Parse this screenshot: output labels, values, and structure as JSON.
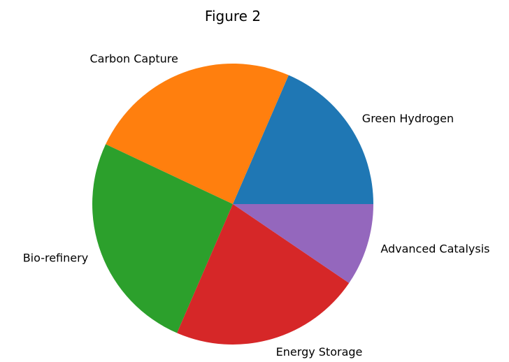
{
  "chart_data": {
    "type": "pie",
    "title": "Figure 2",
    "labels": [
      "Green Hydrogen",
      "Carbon Capture",
      "Bio-refinery",
      "Energy Storage",
      "Advanced Catalysis"
    ],
    "values": [
      18.5,
      24.5,
      25.5,
      22.0,
      9.5
    ],
    "colors": [
      "#1f77b4",
      "#ff7f0e",
      "#2ca02c",
      "#d62728",
      "#9467bd"
    ],
    "start_angle_deg": 0,
    "direction": "counterclockwise",
    "legend": "none"
  }
}
